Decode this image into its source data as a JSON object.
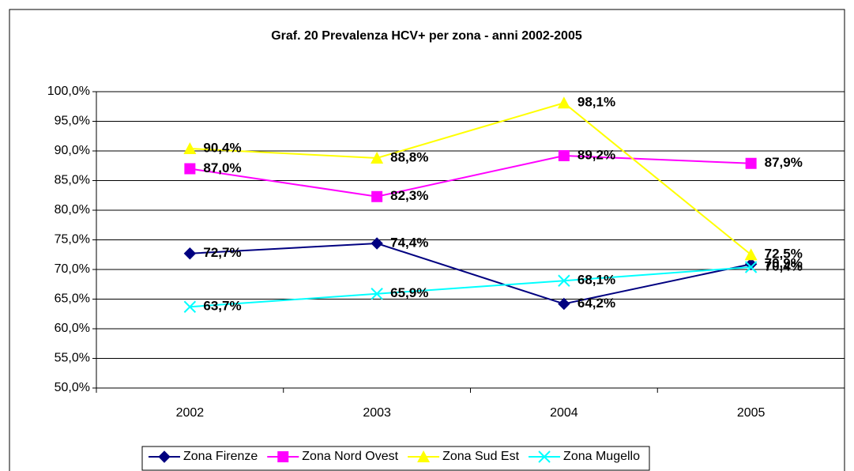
{
  "chart_data": {
    "type": "line",
    "title": "Graf. 20 Prevalenza HCV+ per zona - anni 2002-2005",
    "categories": [
      "2002",
      "2003",
      "2004",
      "2005"
    ],
    "series": [
      {
        "name": "Zona Firenze",
        "color": "#000080",
        "marker": "diamond",
        "values": [
          72.7,
          74.4,
          64.2,
          70.9
        ],
        "value_labels": [
          "72,7%",
          "74,4%",
          "64,2%",
          "70,9%"
        ]
      },
      {
        "name": "Zona Nord Ovest",
        "color": "#ff00ff",
        "marker": "square",
        "values": [
          87.0,
          82.3,
          89.2,
          87.9
        ],
        "value_labels": [
          "87,0%",
          "82,3%",
          "89,2%",
          "87,9%"
        ]
      },
      {
        "name": "Zona Sud Est",
        "color": "#ffff00",
        "marker": "triangle",
        "values": [
          90.4,
          88.8,
          98.1,
          72.5
        ],
        "value_labels": [
          "90,4%",
          "88,8%",
          "98,1%",
          "72,5%"
        ]
      },
      {
        "name": "Zona Mugello",
        "color": "#00ffff",
        "marker": "x",
        "values": [
          63.7,
          65.9,
          68.1,
          70.4
        ],
        "value_labels": [
          "63,7%",
          "65,9%",
          "68,1%",
          "70,4%"
        ]
      }
    ],
    "ylim": [
      50,
      100
    ],
    "yticks": [
      {
        "value": 50,
        "label": "50,0%"
      },
      {
        "value": 55,
        "label": "55,0%"
      },
      {
        "value": 60,
        "label": "60,0%"
      },
      {
        "value": 65,
        "label": "65,0%"
      },
      {
        "value": 70,
        "label": "70,0%"
      },
      {
        "value": 75,
        "label": "75,0%"
      },
      {
        "value": 80,
        "label": "80,0%"
      },
      {
        "value": 85,
        "label": "85,0%"
      },
      {
        "value": 90,
        "label": "90,0%"
      },
      {
        "value": 95,
        "label": "95,0%"
      },
      {
        "value": 100,
        "label": "100,0%"
      }
    ],
    "grid": true,
    "legend": "bottom"
  }
}
